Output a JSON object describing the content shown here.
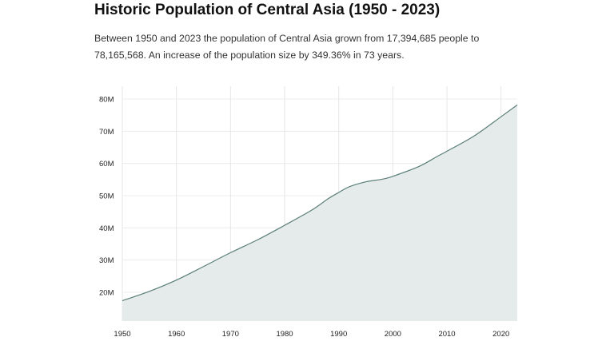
{
  "header": {
    "title": "Historic Population of Central Asia (1950 - 2023)",
    "description": "Between 1950 and 2023 the population of Central Asia grown from 17,394,685 people to 78,165,568. An increase of the population size by 349.36% in 73 years."
  },
  "chart_data": {
    "type": "area",
    "title": "",
    "xlabel": "",
    "ylabel": "",
    "xlim": [
      1950,
      2023
    ],
    "ylim": [
      11000000,
      80000000
    ],
    "grid": true,
    "x_ticks": [
      1950,
      1960,
      1970,
      1980,
      1990,
      2000,
      2010,
      2020
    ],
    "y_ticks": [
      {
        "value": 20000000,
        "label": "20M"
      },
      {
        "value": 30000000,
        "label": "30M"
      },
      {
        "value": 40000000,
        "label": "40M"
      },
      {
        "value": 50000000,
        "label": "50M"
      },
      {
        "value": 60000000,
        "label": "60M"
      },
      {
        "value": 70000000,
        "label": "70M"
      },
      {
        "value": 80000000,
        "label": "80M"
      }
    ],
    "line_color": "#5b7f78",
    "fill_color": "#e5ebea",
    "x": [
      1950,
      1955,
      1960,
      1965,
      1970,
      1975,
      1980,
      1985,
      1988,
      1990,
      1992,
      1995,
      1998,
      2000,
      2005,
      2008,
      2010,
      2015,
      2020,
      2023
    ],
    "values": [
      17394685,
      20300000,
      23800000,
      28000000,
      32300000,
      36300000,
      40800000,
      45500000,
      49000000,
      51000000,
      52800000,
      54300000,
      55100000,
      56000000,
      59200000,
      62000000,
      63800000,
      68500000,
      74500000,
      78165568
    ]
  }
}
